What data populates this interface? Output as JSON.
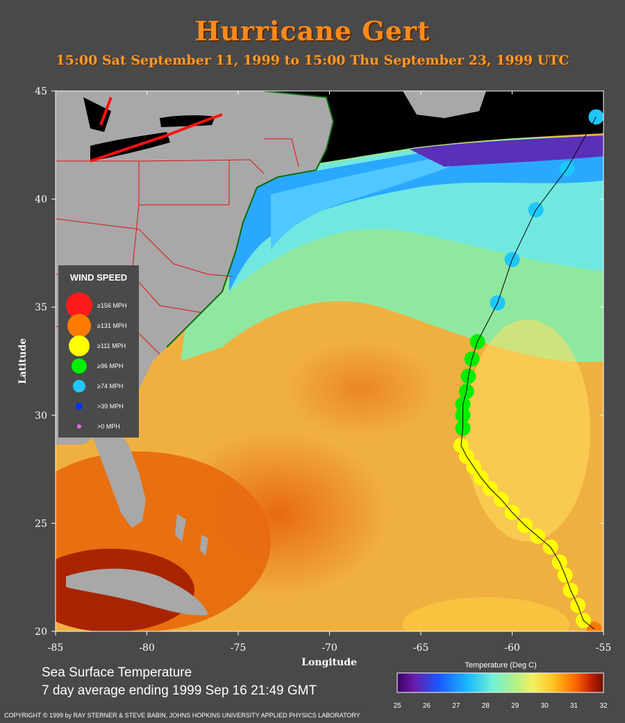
{
  "header": {
    "title": "Hurricane Gert",
    "subtitle": "15:00 Sat September 11, 1999 to 15:00 Thu September 23, 1999  UTC"
  },
  "axes": {
    "xlabel": "Longitude",
    "ylabel": "Latitude",
    "x_ticks": [
      "-85",
      "-80",
      "-75",
      "-70",
      "-65",
      "-60",
      "-55"
    ],
    "y_ticks": [
      "45",
      "40",
      "35",
      "30",
      "25",
      "20"
    ],
    "x_range": [
      -85,
      -55
    ],
    "y_range": [
      20,
      45
    ]
  },
  "legend": {
    "title": "WIND SPEED",
    "items": [
      {
        "label": "≥156 MPH",
        "color": "#ff1a1a"
      },
      {
        "label": "≥131 MPH",
        "color": "#ff7a00"
      },
      {
        "label": "≥111 MPH",
        "color": "#ffff00"
      },
      {
        "label": "≥96 MPH",
        "color": "#00ee00"
      },
      {
        "label": "≥74 MPH",
        "color": "#1ec8ff"
      },
      {
        "label": ">39 MPH",
        "color": "#0030ff"
      },
      {
        "label": ">0 MPH",
        "color": "#ff66ff"
      }
    ]
  },
  "caption": {
    "line1": "Sea Surface Temperature",
    "line2": "7 day average ending 1999 Sep 16 21:49 GMT"
  },
  "colorbar": {
    "title": "Temperature (Deg C)",
    "ticks": [
      "25",
      "26",
      "27",
      "28",
      "29",
      "30",
      "31",
      "32"
    ]
  },
  "copyright": "COPYRIGHT © 1999 by RAY STERNER & STEVE BABIN, JOHNS HOPKINS UNIVERSITY APPLIED PHYSICS LABORATORY",
  "chart_data": {
    "type": "scatter",
    "title": "Hurricane Gert",
    "xlabel": "Longitude",
    "ylabel": "Latitude",
    "xlim": [
      -85,
      -55
    ],
    "ylim": [
      20,
      45
    ],
    "track": [
      {
        "lon": -55.5,
        "lat": 20.1,
        "cat": "≥131 MPH"
      },
      {
        "lon": -56.1,
        "lat": 20.5,
        "cat": "≥111 MPH"
      },
      {
        "lon": -56.4,
        "lat": 21.2,
        "cat": "≥111 MPH"
      },
      {
        "lon": -56.8,
        "lat": 21.9,
        "cat": "≥111 MPH"
      },
      {
        "lon": -57.1,
        "lat": 22.6,
        "cat": "≥111 MPH"
      },
      {
        "lon": -57.4,
        "lat": 23.2,
        "cat": "≥111 MPH"
      },
      {
        "lon": -57.9,
        "lat": 23.9,
        "cat": "≥111 MPH"
      },
      {
        "lon": -58.6,
        "lat": 24.4,
        "cat": "≥111 MPH"
      },
      {
        "lon": -59.3,
        "lat": 24.9,
        "cat": "≥111 MPH"
      },
      {
        "lon": -60.0,
        "lat": 25.5,
        "cat": "≥111 MPH"
      },
      {
        "lon": -60.6,
        "lat": 26.1,
        "cat": "≥111 MPH"
      },
      {
        "lon": -61.2,
        "lat": 26.6,
        "cat": "≥111 MPH"
      },
      {
        "lon": -61.7,
        "lat": 27.1,
        "cat": "≥111 MPH"
      },
      {
        "lon": -62.1,
        "lat": 27.6,
        "cat": "≥111 MPH"
      },
      {
        "lon": -62.5,
        "lat": 28.1,
        "cat": "≥111 MPH"
      },
      {
        "lon": -62.8,
        "lat": 28.6,
        "cat": "≥111 MPH"
      },
      {
        "lon": -62.7,
        "lat": 29.4,
        "cat": "≥96 MPH"
      },
      {
        "lon": -62.7,
        "lat": 30.0,
        "cat": "≥96 MPH"
      },
      {
        "lon": -62.7,
        "lat": 30.5,
        "cat": "≥96 MPH"
      },
      {
        "lon": -62.5,
        "lat": 31.1,
        "cat": "≥96 MPH"
      },
      {
        "lon": -62.4,
        "lat": 31.8,
        "cat": "≥96 MPH"
      },
      {
        "lon": -62.2,
        "lat": 32.6,
        "cat": "≥96 MPH"
      },
      {
        "lon": -61.9,
        "lat": 33.4,
        "cat": "≥96 MPH"
      },
      {
        "lon": -60.8,
        "lat": 35.2,
        "cat": "≥74 MPH"
      },
      {
        "lon": -60.0,
        "lat": 37.2,
        "cat": "≥74 MPH"
      },
      {
        "lon": -58.7,
        "lat": 39.5,
        "cat": "≥74 MPH"
      },
      {
        "lon": -57.0,
        "lat": 41.4,
        "cat": "≥74 MPH"
      },
      {
        "lon": -55.4,
        "lat": 43.8,
        "cat": "≥74 MPH"
      }
    ],
    "colorbar_range": [
      25,
      32
    ]
  }
}
